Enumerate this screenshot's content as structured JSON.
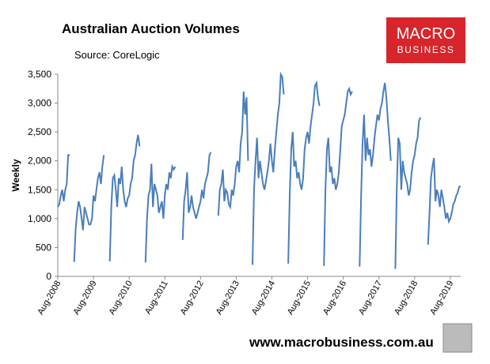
{
  "header": {
    "title": "Australian Auction Volumes",
    "source": "Source: CoreLogic",
    "logo_line1": "MACRO",
    "logo_line2": "BUSINESS"
  },
  "footer": {
    "url": "www.macrobusiness.com.au"
  },
  "chart_data": {
    "type": "line",
    "ylabel": "Weekly",
    "ylim": [
      0,
      3500
    ],
    "yticks": [
      0,
      500,
      {
        "value": 1000,
        "label": "1,000"
      },
      {
        "value": 1500,
        "label": "1,500"
      },
      {
        "value": 2000,
        "label": "2,000"
      },
      {
        "value": 2500,
        "label": "2,500"
      },
      {
        "value": 3000,
        "label": "3,000"
      },
      {
        "value": 3500,
        "label": "3,500"
      }
    ],
    "xlim": [
      0,
      271
    ],
    "xticks": [
      {
        "value": 0,
        "label": "Aug-2008"
      },
      {
        "value": 24,
        "label": "Aug-2009"
      },
      {
        "value": 48,
        "label": "Aug-2010"
      },
      {
        "value": 72,
        "label": "Aug-2011"
      },
      {
        "value": 96,
        "label": "Aug-2012"
      },
      {
        "value": 120,
        "label": "Aug-2013"
      },
      {
        "value": 144,
        "label": "Aug-2014"
      },
      {
        "value": 168,
        "label": "Aug-2015"
      },
      {
        "value": 192,
        "label": "Aug-2016"
      },
      {
        "value": 216,
        "label": "Aug-2017"
      },
      {
        "value": 240,
        "label": "Aug-2018"
      },
      {
        "value": 264,
        "label": "Aug-2019"
      }
    ],
    "series": [
      {
        "color": "#4a7ebb",
        "values": [
          1200,
          1250,
          1400,
          1500,
          1300,
          1500,
          1600,
          2100,
          2100,
          null,
          null,
          250,
          800,
          1100,
          1300,
          1200,
          1000,
          800,
          1200,
          1100,
          1000,
          900,
          900,
          1000,
          1400,
          1300,
          1500,
          1700,
          1800,
          1600,
          1900,
          2100,
          null,
          null,
          null,
          260,
          1200,
          1700,
          1750,
          1500,
          1200,
          1700,
          1600,
          1900,
          1500,
          1300,
          1200,
          1350,
          1400,
          1600,
          1700,
          2000,
          2100,
          2300,
          2450,
          2250,
          null,
          null,
          null,
          240,
          1000,
          1400,
          1500,
          1950,
          1200,
          1600,
          1500,
          1400,
          1100,
          1200,
          1300,
          1000,
          1400,
          1600,
          1500,
          1800,
          1700,
          1900,
          1850,
          1900,
          null,
          null,
          null,
          null,
          630,
          1300,
          1500,
          1800,
          1100,
          1200,
          1400,
          1200,
          1100,
          1000,
          1100,
          1200,
          1300,
          1500,
          1350,
          1600,
          1700,
          1800,
          2100,
          2150,
          null,
          null,
          null,
          null,
          1050,
          1500,
          1600,
          1850,
          1300,
          1500,
          1450,
          1250,
          1200,
          1500,
          1400,
          1600,
          1900,
          2000,
          1800,
          2300,
          2500,
          3200,
          2800,
          3100,
          2000,
          null,
          null,
          200,
          1500,
          2000,
          2400,
          1700,
          2000,
          1800,
          1600,
          1500,
          1650,
          1800,
          2000,
          2300,
          2000,
          1800,
          2200,
          2500,
          2800,
          3000,
          3500,
          3450,
          3150,
          null,
          null,
          220,
          1400,
          2200,
          2500,
          1900,
          2000,
          1700,
          1800,
          1600,
          1500,
          1700,
          2200,
          2400,
          2500,
          2300,
          2600,
          2800,
          3000,
          3300,
          3350,
          3100,
          2950,
          null,
          null,
          180,
          1500,
          2200,
          2400,
          1800,
          1900,
          1600,
          1700,
          1500,
          1600,
          1800,
          2200,
          2600,
          2700,
          2800,
          3000,
          3200,
          3250,
          3150,
          3200,
          null,
          null,
          null,
          null,
          170,
          1400,
          2300,
          2800,
          2000,
          2400,
          2100,
          2200,
          1900,
          2100,
          2400,
          2600,
          2800,
          2700,
          2900,
          3000,
          3200,
          3350,
          3100,
          2700,
          2400,
          2000,
          null,
          null,
          130,
          1500,
          2400,
          2300,
          1500,
          2000,
          1800,
          1700,
          1600,
          1400,
          1500,
          1800,
          2000,
          2100,
          2300,
          2400,
          2700,
          2750,
          null,
          null,
          null,
          null,
          550,
          1100,
          1700,
          1900,
          2050,
          1300,
          1500,
          1400,
          1200,
          1500,
          1350,
          1200,
          1000,
          1100,
          950,
          1000,
          1100,
          1250,
          1300,
          1400,
          1450,
          1550,
          1560
        ]
      }
    ]
  }
}
